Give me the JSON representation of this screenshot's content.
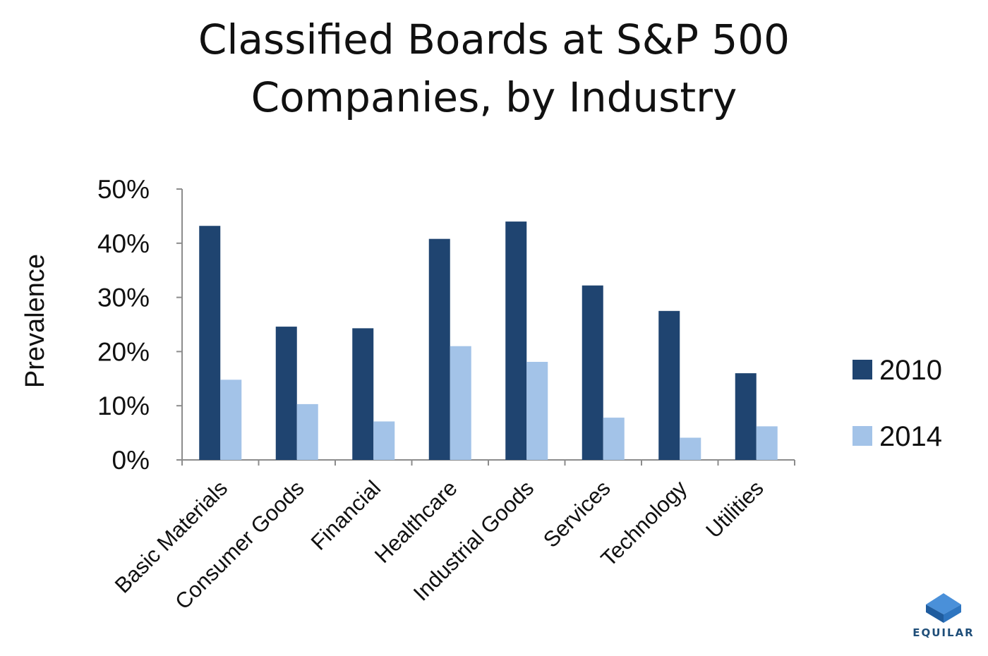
{
  "chart_data": {
    "type": "bar",
    "title_lines": [
      "Classified Boards at S&P 500",
      "Companies, by Industry"
    ],
    "ylabel": "Prevalence",
    "xlabel": "",
    "ylim": [
      0,
      50
    ],
    "yticks": [
      0,
      10,
      20,
      30,
      40,
      50
    ],
    "ytick_labels": [
      "0%",
      "10%",
      "20%",
      "30%",
      "40%",
      "50%"
    ],
    "categories": [
      "Basic Materials",
      "Consumer Goods",
      "Financial",
      "Healthcare",
      "Industrial Goods",
      "Services",
      "Technology",
      "Utilities"
    ],
    "series": [
      {
        "name": "2010",
        "color": "#1f4470",
        "values": [
          43.2,
          24.6,
          24.3,
          40.8,
          44.0,
          32.2,
          27.5,
          16.0
        ]
      },
      {
        "name": "2014",
        "color": "#a3c3e8",
        "values": [
          14.8,
          10.3,
          7.1,
          21.0,
          18.1,
          7.8,
          4.1,
          6.2
        ]
      }
    ],
    "grid": false,
    "legend_position": "right"
  },
  "logo": {
    "text": "EQUILAR"
  }
}
